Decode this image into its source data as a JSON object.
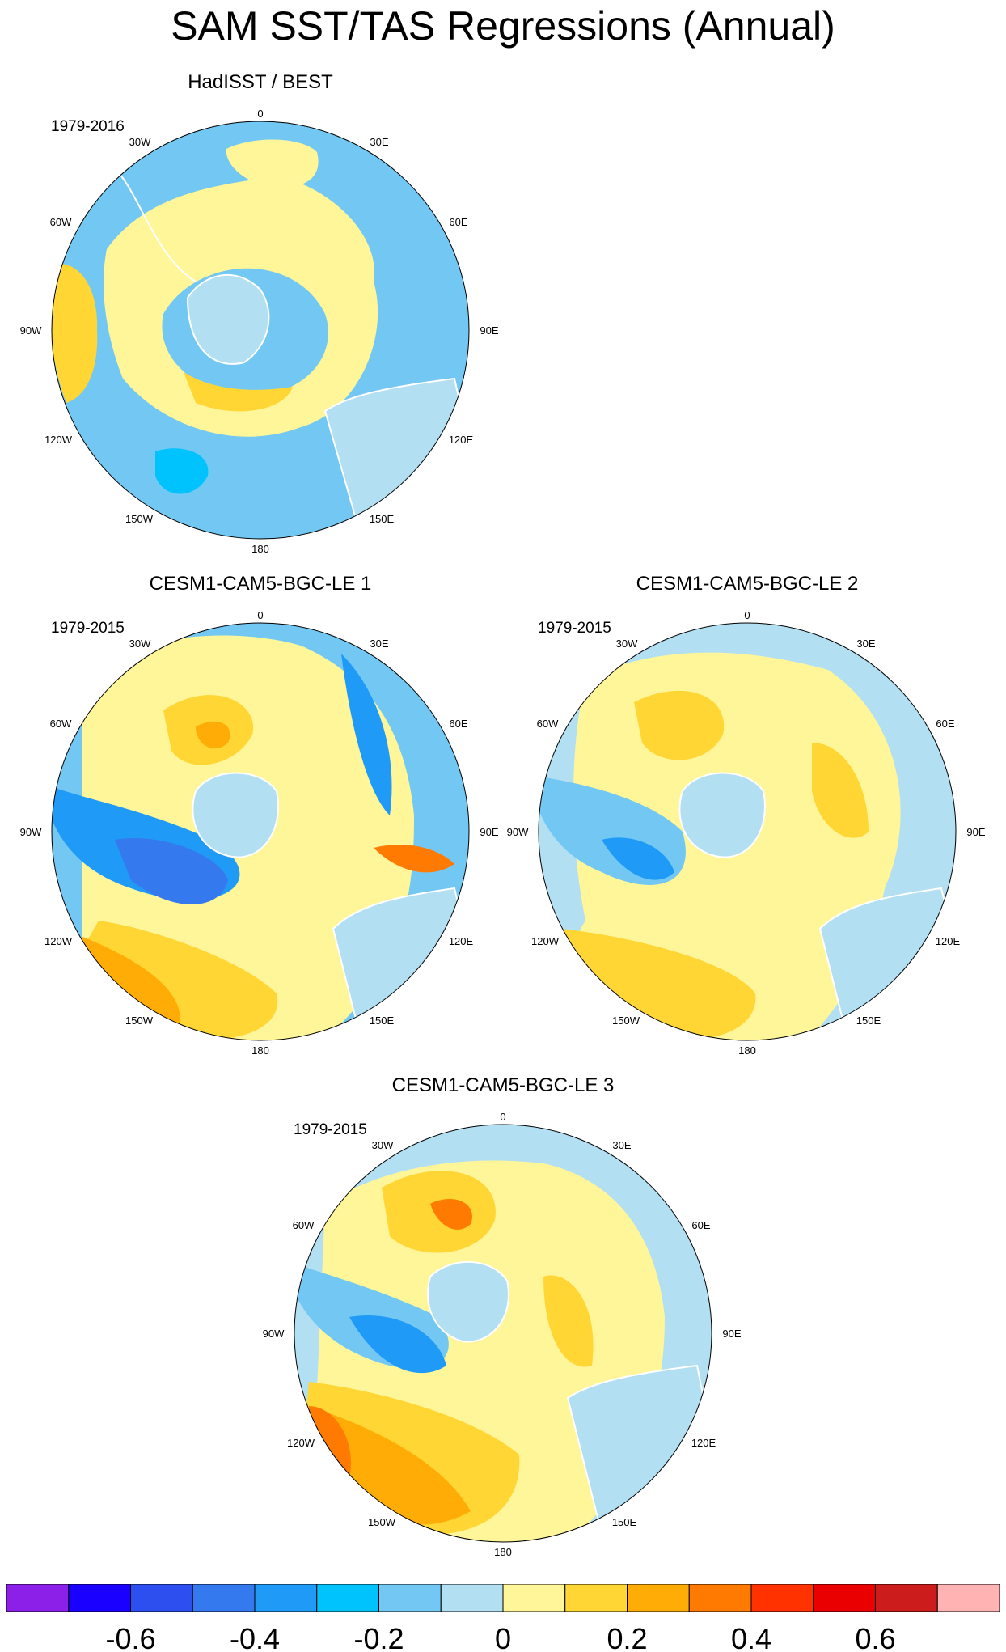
{
  "title": "SAM SST/TAS Regressions (Annual)",
  "colors": {
    "minus_0_7": "#8c1fe8",
    "minus_0_6": "#1a00ff",
    "minus_0_5": "#2e4ff0",
    "minus_0_4": "#3479ee",
    "minus_0_3": "#1f9bf7",
    "minus_0_2": "#00c3fd",
    "minus_0_1": "#73c8f3",
    "zero_neg": "#b3dff3",
    "zero_pos": "#fff599",
    "plus_0_1": "#ffd633",
    "plus_0_2": "#ffad06",
    "plus_0_3": "#ff7a00",
    "plus_0_4": "#ff3200",
    "plus_0_5": "#eb0000",
    "plus_0_6": "#cc1c1c",
    "plus_0_7": "#ffb3b3",
    "land": "#b3dff3",
    "coast": "#ffffff"
  },
  "longitude_labels": [
    "0",
    "30E",
    "60E",
    "90E",
    "120E",
    "150E",
    "180",
    "150W",
    "120W",
    "90W",
    "60W",
    "30W"
  ],
  "panels": [
    {
      "title": "HadISST / BEST",
      "period": "1979-2016"
    },
    {
      "title": "CESM1-CAM5-BGC-LE 1",
      "period": "1979-2015"
    },
    {
      "title": "CESM1-CAM5-BGC-LE 2",
      "period": "1979-2015"
    },
    {
      "title": "CESM1-CAM5-BGC-LE 3",
      "period": "1979-2015"
    }
  ],
  "colorbar": {
    "tick_labels": [
      "-0.6",
      "-0.4",
      "-0.2",
      "0",
      "0.2",
      "0.4",
      "0.6"
    ],
    "box_colors": [
      "#8c1fe8",
      "#1a00ff",
      "#2e4ff0",
      "#3479ee",
      "#1f9bf7",
      "#00c3fd",
      "#73c8f3",
      "#b3dff3",
      "#fff599",
      "#ffd633",
      "#ffad06",
      "#ff7a00",
      "#ff3200",
      "#eb0000",
      "#cc1c1c",
      "#ffb3b3"
    ]
  }
}
